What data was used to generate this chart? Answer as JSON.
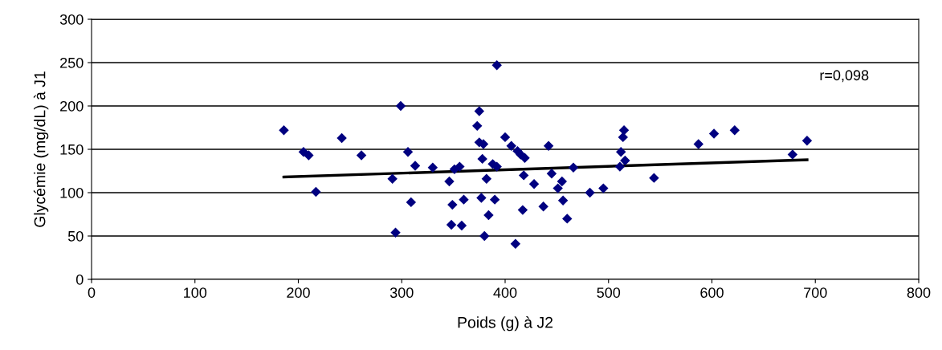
{
  "chart_data": {
    "type": "scatter",
    "xlabel": "Poids (g) à J2",
    "ylabel": "Glycémie (mg/dL) à J1",
    "xlim": [
      0,
      800
    ],
    "xticks": [
      0,
      100,
      200,
      300,
      400,
      500,
      600,
      700,
      800
    ],
    "ylim": [
      0,
      300
    ],
    "yticks": [
      0,
      50,
      100,
      150,
      200,
      250,
      300
    ],
    "grid": "y",
    "annotations": [
      "r=0,098"
    ],
    "series": [
      {
        "marker": "diamond",
        "color": "#000080",
        "x": [
          186,
          205,
          210,
          217,
          242,
          261,
          291,
          294,
          299,
          306,
          309,
          313,
          330,
          346,
          348,
          349,
          351,
          356,
          358,
          360,
          373,
          375,
          375,
          378,
          379,
          377,
          380,
          382,
          384,
          388,
          390,
          392,
          392,
          400,
          406,
          410,
          412,
          415,
          417,
          418,
          419,
          428,
          437,
          442,
          445,
          451,
          455,
          456,
          460,
          466,
          482,
          495,
          511,
          512,
          514,
          515,
          516,
          544,
          587,
          602,
          622,
          678,
          692
        ],
        "values": [
          172,
          147,
          143,
          101,
          163,
          143,
          116,
          54,
          200,
          147,
          89,
          131,
          129,
          113,
          63,
          86,
          127,
          130,
          62,
          92,
          177,
          194,
          158,
          139,
          156,
          94,
          50,
          116,
          74,
          133,
          92,
          247,
          130,
          164,
          154,
          41,
          148,
          144,
          80,
          120,
          140,
          110,
          84,
          154,
          122,
          105,
          113,
          91,
          70,
          129,
          100,
          105,
          130,
          147,
          164,
          172,
          137,
          117,
          156,
          168,
          172,
          144,
          160
        ]
      },
      {
        "type": "line",
        "marker": "none",
        "color": "#000000",
        "x": [
          186,
          692
        ],
        "values": [
          118,
          138
        ]
      }
    ]
  }
}
